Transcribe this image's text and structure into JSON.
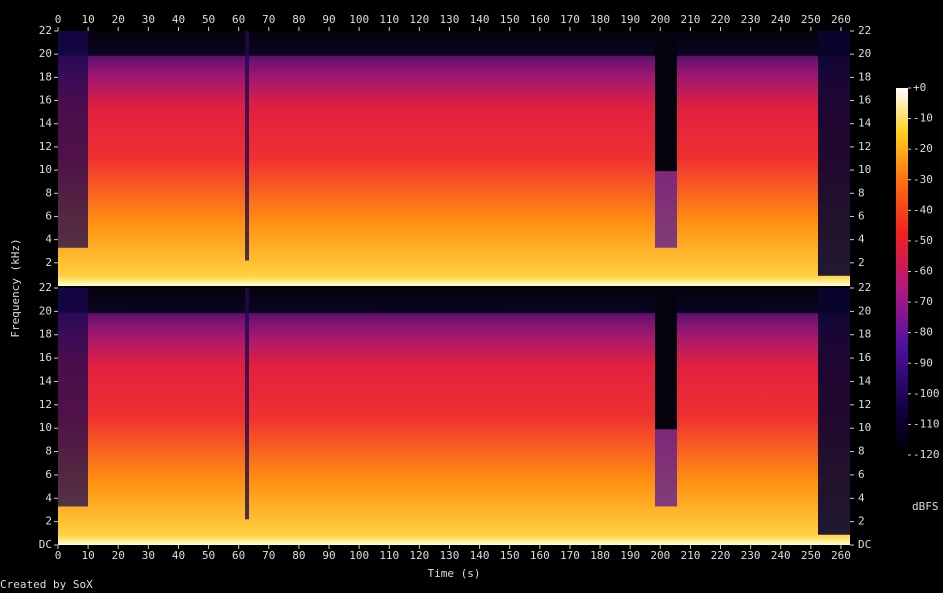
{
  "chart_data": [
    {
      "type": "spectrogram",
      "ylabel": "Frequency (kHz)",
      "xlim": [
        0,
        263
      ],
      "xticks": [
        0,
        10,
        20,
        30,
        40,
        50,
        60,
        70,
        80,
        90,
        100,
        110,
        120,
        130,
        140,
        150,
        160,
        170,
        180,
        190,
        200,
        210,
        220,
        230,
        240,
        250,
        260
      ],
      "ylim": [
        0,
        22
      ],
      "yticks": [
        2,
        4,
        6,
        8,
        10,
        12,
        14,
        16,
        18,
        20,
        22
      ]
    },
    {
      "type": "spectrogram",
      "xlabel": "Time (s)",
      "xlim": [
        0,
        263
      ],
      "xticks": [
        0,
        10,
        20,
        30,
        40,
        50,
        60,
        70,
        80,
        90,
        100,
        110,
        120,
        130,
        140,
        150,
        160,
        170,
        180,
        190,
        200,
        210,
        220,
        230,
        240,
        250,
        260
      ],
      "ylim": [
        0,
        22
      ],
      "yticks": [
        {
          "value": 0,
          "label": "DC"
        },
        2,
        4,
        6,
        8,
        10,
        12,
        14,
        16,
        18,
        20,
        22
      ]
    }
  ],
  "colorbar": {
    "lim": [
      -120,
      0
    ],
    "label": "dBFS",
    "ticks": [
      {
        "value": 0,
        "label": "+0"
      },
      -10,
      -20,
      -30,
      -40,
      -50,
      -60,
      -70,
      -80,
      -90,
      -100,
      -110,
      -120
    ]
  },
  "footer": "Created by SoX"
}
